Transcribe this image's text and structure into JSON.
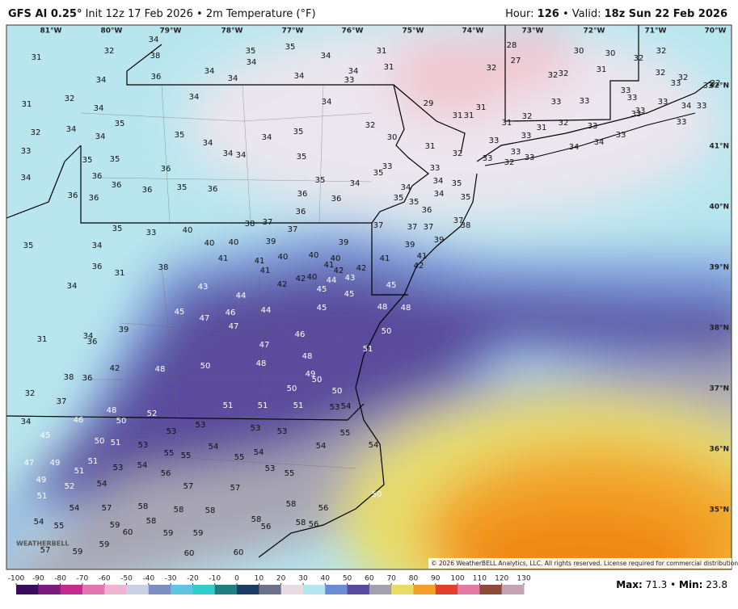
{
  "header": {
    "title_bold": "GFS AI 0.25°",
    "title_rest": "Init 12z 17 Feb 2026 • 2m Temperature (°F)",
    "hour_label": "Hour:",
    "hour": 126,
    "valid_label": "• Valid:",
    "valid": "18z Sun 22 Feb 2026"
  },
  "longitudes": [
    "81°W",
    "80°W",
    "79°W",
    "78°W",
    "77°W",
    "76°W",
    "75°W",
    "74°W",
    "73°W",
    "72°W",
    "71°W",
    "70°W"
  ],
  "latitudes": [
    "42°N",
    "41°N",
    "40°N",
    "39°N",
    "38°N",
    "37°N",
    "36°N",
    "35°N"
  ],
  "station_values": [
    31,
    32,
    34,
    38,
    34,
    36,
    34,
    34,
    35,
    34,
    35,
    34,
    34,
    33,
    34,
    31,
    31,
    29,
    31,
    31,
    31,
    32,
    28,
    27,
    30,
    30,
    32,
    32,
    31,
    32,
    32,
    31,
    32,
    32,
    34,
    34,
    35,
    34,
    33,
    34,
    35,
    35,
    36,
    36,
    36,
    36,
    36,
    36,
    34,
    35,
    34,
    34,
    34,
    34,
    35,
    34,
    32,
    30,
    31,
    32,
    33,
    33,
    35,
    35,
    35,
    36,
    35,
    34,
    36,
    36,
    36,
    34,
    35,
    35,
    34,
    34,
    35,
    35,
    36,
    37,
    37,
    37,
    37,
    38,
    39,
    39,
    41,
    41,
    42,
    45,
    35,
    33,
    40,
    38,
    37,
    37,
    40,
    39,
    40,
    35,
    34,
    36,
    31,
    34,
    38,
    41,
    41,
    41,
    40,
    40,
    40,
    39,
    40,
    42,
    42,
    41,
    42,
    42,
    43,
    44,
    45,
    43,
    44,
    46,
    44,
    45,
    45,
    45,
    48,
    48,
    47,
    47,
    46,
    47,
    50,
    51,
    39,
    34,
    36,
    31,
    48,
    48,
    48,
    42,
    36,
    38,
    50,
    49,
    50,
    50,
    50,
    37,
    32,
    51,
    51,
    51,
    53,
    54,
    48,
    52,
    46,
    50,
    34,
    53,
    53,
    53,
    53,
    45,
    50,
    51,
    53,
    54,
    54,
    55,
    54,
    55,
    55,
    55,
    54,
    47,
    49,
    51,
    51,
    53,
    54,
    53,
    55,
    56,
    49,
    52,
    54,
    57,
    57,
    50,
    51,
    54,
    57,
    58,
    58,
    58,
    58,
    56,
    54,
    59,
    58,
    58,
    56,
    58,
    56,
    60,
    59,
    59,
    55,
    59,
    57,
    59,
    60,
    60,
    33,
    33,
    33,
    33,
    33,
    33,
    34,
    33,
    33,
    32,
    33,
    32,
    32,
    32,
    31,
    31,
    32,
    33,
    33,
    34,
    34,
    33,
    33,
    33,
    33,
    32,
    33,
    33,
    33
  ],
  "colorbar": {
    "ticks": [
      -100,
      -90,
      -80,
      -70,
      -60,
      -50,
      -40,
      -30,
      -20,
      -10,
      0,
      10,
      20,
      30,
      40,
      50,
      60,
      70,
      80,
      90,
      100,
      110,
      120,
      130
    ]
  },
  "stats": {
    "max_label": "Max:",
    "max": 71.3,
    "separator": "•",
    "min_label": "Min:",
    "min": 23.8
  },
  "copyright": "© 2026 WeatherBELL Analytics, LLC. All rights reserved. License required for commercial distribution.",
  "logo": "WEATHERBELL"
}
